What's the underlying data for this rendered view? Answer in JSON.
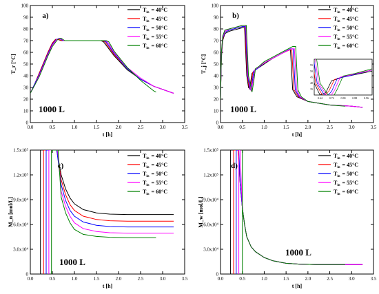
{
  "legend": {
    "entries": [
      {
        "label": "T",
        "sub": "in",
        "suffix": "= 40°C",
        "color": "#000000"
      },
      {
        "label": "T",
        "sub": "in",
        "suffix": "= 45°C",
        "color": "#ff0000"
      },
      {
        "label": "T",
        "sub": "in",
        "suffix": "= 50°C",
        "color": "#0000ff"
      },
      {
        "label": "T",
        "sub": "in",
        "suffix": "= 55°C",
        "color": "#ff00ff"
      },
      {
        "label": "T",
        "sub": "in",
        "suffix": "= 60°C",
        "color": "#008000"
      }
    ]
  },
  "chart_data": [
    {
      "id": "a",
      "type": "line",
      "panel_label": "a)",
      "annotation": "1000 L",
      "xlabel": "t [h]",
      "ylabel": "T_r [°C]",
      "xlim": [
        0,
        3.5
      ],
      "ylim": [
        0,
        100
      ],
      "xticks": [
        0.0,
        0.5,
        1.0,
        1.5,
        2.0,
        2.5,
        3.0,
        3.5
      ],
      "yticks": [
        0,
        10,
        20,
        30,
        40,
        50,
        60,
        70,
        80,
        90,
        100
      ],
      "xtick_labels": [
        "0.0",
        "0.5",
        "1.0",
        "1.5",
        "2.0",
        "2.5",
        "3.0",
        "3.5"
      ],
      "ytick_labels": [
        "0",
        "10",
        "20",
        "30",
        "40",
        "50",
        "60",
        "70",
        "80",
        "90",
        "100"
      ],
      "series": [
        {
          "name": "T_in = 40°C",
          "x": [
            0,
            0.1,
            0.2,
            0.3,
            0.4,
            0.5,
            0.57,
            0.62,
            0.7,
            0.8,
            1.0,
            1.3,
            1.6,
            1.66,
            1.9,
            2.2,
            2.5,
            2.8,
            3.1,
            3.25
          ],
          "y": [
            25,
            33,
            42,
            51,
            60,
            68,
            71,
            71,
            70,
            70,
            70,
            70,
            70,
            69,
            57,
            45,
            37,
            31,
            27,
            25
          ]
        },
        {
          "name": "T_in = 45°C",
          "x": [
            0,
            0.1,
            0.2,
            0.3,
            0.4,
            0.5,
            0.58,
            0.64,
            0.72,
            0.8,
            1.0,
            1.3,
            1.63,
            1.69,
            1.9,
            2.2,
            2.5,
            2.8,
            3.1,
            3.25
          ],
          "y": [
            25,
            33,
            42,
            51,
            60,
            68,
            71,
            71,
            70,
            70,
            70,
            70,
            70,
            69,
            58,
            46,
            37,
            31,
            27,
            25
          ]
        },
        {
          "name": "T_in = 50°C",
          "x": [
            0,
            0.1,
            0.2,
            0.3,
            0.4,
            0.5,
            0.59,
            0.66,
            0.74,
            0.8,
            1.0,
            1.3,
            1.66,
            1.72,
            1.9,
            2.2,
            2.5,
            2.8,
            3.1,
            3.25
          ],
          "y": [
            25,
            33,
            41,
            50,
            59,
            67,
            71,
            72,
            70,
            70,
            70,
            70,
            70,
            69,
            59,
            46,
            37,
            31,
            27,
            25
          ]
        },
        {
          "name": "T_in = 55°C",
          "x": [
            0,
            0.1,
            0.2,
            0.3,
            0.4,
            0.5,
            0.6,
            0.68,
            0.76,
            0.82,
            1.0,
            1.3,
            1.69,
            1.75,
            1.9,
            2.2,
            2.5,
            2.8,
            3.1,
            3.25
          ],
          "y": [
            25,
            32,
            40,
            49,
            58,
            66,
            71,
            72,
            70,
            70,
            70,
            70,
            70,
            69,
            60,
            47,
            38,
            31,
            27,
            25
          ]
        },
        {
          "name": "T_in = 60°C",
          "x": [
            0,
            0.1,
            0.2,
            0.3,
            0.4,
            0.5,
            0.62,
            0.7,
            0.78,
            0.85,
            1.0,
            1.3,
            1.72,
            1.78,
            1.9,
            2.2,
            2.5,
            2.8,
            2.85
          ],
          "y": [
            25,
            32,
            39,
            48,
            57,
            65,
            71,
            72,
            70,
            70,
            70,
            70,
            70,
            69,
            61,
            47,
            36,
            27,
            26
          ]
        }
      ]
    },
    {
      "id": "b",
      "type": "line",
      "panel_label": "b)",
      "annotation": "1000 L",
      "xlabel": "t [h]",
      "ylabel": "T_j [°C]",
      "xlim": [
        0,
        3.5
      ],
      "ylim": [
        0,
        100
      ],
      "xticks": [
        0.0,
        0.5,
        1.0,
        1.5,
        2.0,
        2.5,
        3.0,
        3.5
      ],
      "yticks": [
        0,
        10,
        20,
        30,
        40,
        50,
        60,
        70,
        80,
        90,
        100
      ],
      "xtick_labels": [
        "0.0",
        "0.5",
        "1.0",
        "1.5",
        "2.0",
        "2.5",
        "3.0",
        "3.5"
      ],
      "ytick_labels": [
        "0",
        "10",
        "20",
        "30",
        "40",
        "50",
        "60",
        "70",
        "80",
        "90",
        "100"
      ],
      "inset": {
        "xlim": [
          0.6,
          1.0
        ],
        "ylim": [
          30,
          60
        ],
        "xtick_labels": [
          "0.64",
          "0.72",
          "0.80",
          "0.88",
          "0.96"
        ],
        "ytick_labels": [
          "35",
          "40",
          "45",
          "50",
          "55"
        ]
      },
      "series": [
        {
          "name": "T_in = 40°C",
          "x": [
            0,
            0.02,
            0.05,
            0.1,
            0.2,
            0.3,
            0.4,
            0.5,
            0.55,
            0.6,
            0.64,
            0.68,
            0.72,
            0.8,
            1.0,
            1.2,
            1.4,
            1.55,
            1.6,
            1.65,
            1.75,
            2.0,
            2.5,
            3.0,
            3.25
          ],
          "y": [
            20,
            55,
            70,
            76,
            78,
            79,
            80,
            81,
            81,
            40,
            30,
            32,
            42,
            45,
            50,
            55,
            59,
            62,
            62,
            28,
            22,
            18,
            15,
            14,
            13
          ]
        },
        {
          "name": "T_in = 45°C",
          "x": [
            0,
            0.02,
            0.05,
            0.1,
            0.2,
            0.3,
            0.4,
            0.5,
            0.56,
            0.61,
            0.66,
            0.7,
            0.74,
            0.82,
            1.0,
            1.2,
            1.4,
            1.58,
            1.63,
            1.68,
            1.78,
            2.0,
            2.5,
            3.0,
            3.25
          ],
          "y": [
            20,
            57,
            71,
            77,
            79,
            80,
            81,
            82,
            82,
            40,
            29,
            33,
            43,
            46,
            51,
            55,
            59,
            62,
            62,
            28,
            22,
            18,
            15,
            14,
            13
          ]
        },
        {
          "name": "T_in = 50°C",
          "x": [
            0,
            0.02,
            0.05,
            0.1,
            0.2,
            0.3,
            0.4,
            0.5,
            0.57,
            0.62,
            0.68,
            0.72,
            0.76,
            0.84,
            1.0,
            1.2,
            1.4,
            1.6,
            1.66,
            1.71,
            1.8,
            2.0,
            2.5,
            3.0,
            3.25
          ],
          "y": [
            20,
            58,
            72,
            77,
            79,
            80,
            81,
            82,
            82,
            40,
            28,
            33,
            44,
            46,
            51,
            55,
            59,
            63,
            63,
            28,
            22,
            18,
            15,
            14,
            13
          ]
        },
        {
          "name": "T_in = 55°C",
          "x": [
            0,
            0.02,
            0.05,
            0.1,
            0.2,
            0.3,
            0.4,
            0.5,
            0.58,
            0.63,
            0.7,
            0.74,
            0.78,
            0.86,
            1.0,
            1.2,
            1.4,
            1.62,
            1.69,
            1.74,
            1.82,
            2.0,
            2.5,
            3.0,
            3.25
          ],
          "y": [
            20,
            59,
            73,
            78,
            80,
            81,
            82,
            83,
            83,
            40,
            27,
            34,
            45,
            47,
            51,
            55,
            59,
            63,
            63,
            28,
            22,
            18,
            15,
            14,
            13
          ]
        },
        {
          "name": "T_in = 60°C",
          "x": [
            0,
            0.02,
            0.05,
            0.1,
            0.2,
            0.3,
            0.4,
            0.5,
            0.59,
            0.64,
            0.72,
            0.76,
            0.8,
            0.88,
            1.0,
            1.2,
            1.4,
            1.65,
            1.72,
            1.77,
            1.85,
            2.0,
            2.5,
            2.85
          ],
          "y": [
            20,
            60,
            74,
            79,
            80,
            81,
            82,
            83,
            83,
            40,
            26,
            35,
            46,
            48,
            52,
            56,
            60,
            65,
            65,
            28,
            22,
            18,
            15,
            14
          ]
        }
      ]
    },
    {
      "id": "c",
      "type": "line",
      "panel_label": "c)",
      "annotation": "1000 L",
      "xlabel": "t [h]",
      "ylabel": "M_n [mol/L]",
      "xlim": [
        0,
        3.5
      ],
      "ylim": [
        0,
        150000
      ],
      "xticks": [
        0.0,
        0.5,
        1.0,
        1.5,
        2.0,
        2.5,
        3.0,
        3.5
      ],
      "yticks": [
        0,
        30000,
        60000,
        90000,
        120000,
        150000
      ],
      "xtick_labels": [
        "0.0",
        "0.5",
        "1.0",
        "1.5",
        "2.0",
        "2.5",
        "3.0",
        "3.5"
      ],
      "ytick_labels": [
        "0",
        "3.0x10⁴",
        "6.0x10⁴",
        "9.0x10⁴",
        "1.2x10⁵",
        "1.5x10⁵"
      ],
      "series": [
        {
          "name": "T_in = 40°C",
          "x": [
            0.23,
            0.23,
            0.6,
            0.7,
            0.8,
            0.9,
            1.0,
            1.2,
            1.5,
            1.8,
            2.2,
            2.6,
            3.0,
            3.25
          ],
          "y": [
            0,
            150000,
            150000,
            120000,
            103000,
            92000,
            85000,
            78000,
            74000,
            72500,
            72000,
            72000,
            72000,
            72000
          ]
        },
        {
          "name": "T_in = 45°C",
          "x": [
            0.3,
            0.3,
            0.6,
            0.7,
            0.8,
            0.9,
            1.0,
            1.2,
            1.5,
            1.8,
            2.2,
            2.6,
            3.0,
            3.25
          ],
          "y": [
            0,
            150000,
            150000,
            114000,
            96000,
            84000,
            77000,
            70000,
            66000,
            64500,
            64000,
            64000,
            64000,
            64000
          ]
        },
        {
          "name": "T_in = 50°C",
          "x": [
            0.36,
            0.36,
            0.6,
            0.7,
            0.8,
            0.9,
            1.0,
            1.2,
            1.5,
            1.8,
            2.2,
            2.6,
            3.0,
            3.25
          ],
          "y": [
            0,
            150000,
            150000,
            108000,
            89000,
            77000,
            70000,
            63000,
            59000,
            57500,
            57000,
            57000,
            57000,
            57000
          ]
        },
        {
          "name": "T_in = 55°C",
          "x": [
            0.42,
            0.42,
            0.62,
            0.7,
            0.8,
            0.9,
            1.0,
            1.2,
            1.5,
            1.8,
            2.2,
            2.6,
            3.0,
            3.25
          ],
          "y": [
            0,
            150000,
            150000,
            100000,
            82000,
            70000,
            62000,
            55000,
            51500,
            50000,
            49500,
            49500,
            49500,
            49500
          ]
        },
        {
          "name": "T_in = 60°C",
          "x": [
            0.48,
            0.48,
            0.63,
            0.7,
            0.8,
            0.9,
            1.0,
            1.2,
            1.5,
            1.8,
            2.2,
            2.6,
            2.85
          ],
          "y": [
            0,
            150000,
            150000,
            93000,
            74000,
            62000,
            54000,
            48000,
            45500,
            44500,
            44000,
            44000,
            44000
          ]
        }
      ]
    },
    {
      "id": "d",
      "type": "line",
      "panel_label": "d)",
      "annotation": "1000 L",
      "xlabel": "t [h]",
      "ylabel": "M_w [mol/L]",
      "xlim": [
        0,
        3.5
      ],
      "ylim": [
        0,
        150000
      ],
      "xticks": [
        0.0,
        0.5,
        1.0,
        1.5,
        2.0,
        2.5,
        3.0,
        3.5
      ],
      "yticks": [
        0,
        30000,
        60000,
        90000,
        120000,
        150000
      ],
      "xtick_labels": [
        "0.0",
        "0.5",
        "1.0",
        "1.5",
        "2.0",
        "2.5",
        "3.0",
        "3.5"
      ],
      "ytick_labels": [
        "0",
        "3.0x10⁴",
        "6.0x10⁴",
        "9.0x10⁴",
        "1.2x10⁵",
        "1.5x10⁵"
      ],
      "series": [
        {
          "name": "T_in = 40°C",
          "x": [
            0.23,
            0.23,
            0.4,
            0.45,
            0.5,
            0.55,
            0.6,
            0.7,
            0.8,
            1.0,
            1.2,
            1.5,
            1.8,
            2.2,
            2.6,
            3.0,
            3.25
          ],
          "y": [
            0,
            150000,
            150000,
            110000,
            80000,
            60000,
            45000,
            33000,
            27000,
            20000,
            16000,
            13000,
            12000,
            11500,
            11500,
            11500,
            11500
          ]
        },
        {
          "name": "T_in = 45°C",
          "x": [
            0.3,
            0.3,
            0.4,
            0.45,
            0.5,
            0.55,
            0.6,
            0.7,
            0.8,
            1.0,
            1.2,
            1.5,
            1.8,
            2.2,
            2.6,
            3.0,
            3.25
          ],
          "y": [
            0,
            150000,
            150000,
            110000,
            80000,
            60000,
            45000,
            33000,
            27000,
            20000,
            16000,
            13000,
            12000,
            11500,
            11500,
            11500,
            11500
          ]
        },
        {
          "name": "T_in = 50°C",
          "x": [
            0.36,
            0.36,
            0.42,
            0.45,
            0.5,
            0.55,
            0.6,
            0.7,
            0.8,
            1.0,
            1.2,
            1.5,
            1.8,
            2.2,
            2.6,
            3.0,
            3.25
          ],
          "y": [
            0,
            150000,
            150000,
            110000,
            80000,
            60000,
            45000,
            33000,
            27000,
            20000,
            16000,
            13000,
            12000,
            11500,
            11500,
            11500,
            11500
          ]
        },
        {
          "name": "T_in = 55°C",
          "x": [
            0.42,
            0.42,
            0.45,
            0.48,
            0.5,
            0.55,
            0.6,
            0.7,
            0.8,
            1.0,
            1.2,
            1.5,
            1.8,
            2.2,
            2.6,
            3.0,
            3.25
          ],
          "y": [
            0,
            150000,
            150000,
            105000,
            80000,
            60000,
            45000,
            33000,
            27000,
            20000,
            16000,
            13000,
            12000,
            11500,
            11500,
            11500,
            11500
          ]
        },
        {
          "name": "T_in = 60°C",
          "x": [
            0.5,
            0.5,
            0.5,
            0.55,
            0.6,
            0.7,
            0.8,
            1.0,
            1.2,
            1.5,
            1.8,
            2.2,
            2.6,
            2.85
          ],
          "y": [
            0,
            150000,
            80000,
            60000,
            45000,
            33000,
            27000,
            20000,
            16000,
            13000,
            12000,
            11500,
            11500,
            11500
          ]
        }
      ]
    }
  ]
}
